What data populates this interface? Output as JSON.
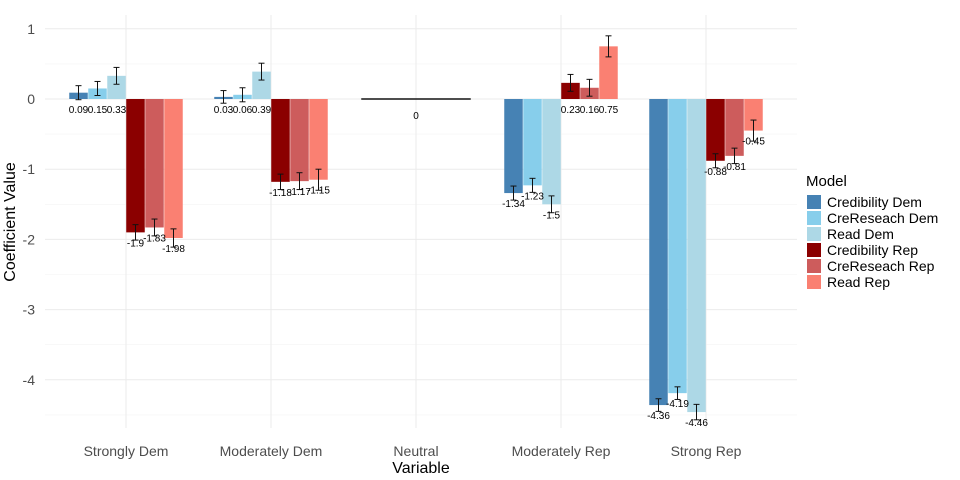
{
  "chart_data": {
    "type": "bar",
    "title": "",
    "xlabel": "Variable",
    "ylabel": "Coefficient Value",
    "categories": [
      "Strongly Dem",
      "Moderately Dem",
      "Neutral",
      "Moderately Rep",
      "Strong Rep"
    ],
    "ylim": [
      -4.7,
      1.05
    ],
    "yticks": [
      1,
      0,
      -1,
      -2,
      -3,
      -4
    ],
    "grid": true,
    "legend": {
      "title": "Model",
      "position": "right"
    },
    "series": [
      {
        "name": "Credibility Dem",
        "color": "#4682b4",
        "values": [
          0.09,
          0.03,
          0,
          -1.34,
          -4.36
        ],
        "labels": [
          "0.09",
          "0.03",
          "0",
          "-1.34",
          "-4.36"
        ],
        "err": [
          0.1,
          0.09,
          0,
          0.1,
          0.09
        ]
      },
      {
        "name": "CreReseach Dem",
        "color": "#87ceeb",
        "values": [
          0.15,
          0.06,
          null,
          -1.23,
          -4.19
        ],
        "labels": [
          "0.15",
          "0.06",
          "",
          "-1.23",
          "-4.19"
        ],
        "err": [
          0.1,
          0.1,
          0,
          0.1,
          0.09
        ]
      },
      {
        "name": "Read Dem",
        "color": "#add8e6",
        "values": [
          0.33,
          0.39,
          null,
          -1.5,
          -4.46
        ],
        "labels": [
          "0.33",
          "0.39",
          "",
          "-1.5",
          "-4.46"
        ],
        "err": [
          0.12,
          0.12,
          0,
          0.12,
          0.11
        ]
      },
      {
        "name": "Credibility Rep",
        "color": "#8b0000",
        "values": [
          -1.9,
          -1.18,
          null,
          0.23,
          -0.88
        ],
        "labels": [
          "-1.9",
          "-1.18",
          "",
          "0.23",
          "-0.88"
        ],
        "err": [
          0.11,
          0.11,
          0,
          0.12,
          0.1
        ]
      },
      {
        "name": "CreReseach Rep",
        "color": "#cd5c5c",
        "values": [
          -1.83,
          -1.17,
          null,
          0.16,
          -0.81
        ],
        "labels": [
          "-1.83",
          "-1.17",
          "",
          "0.16",
          "-0.81"
        ],
        "err": [
          0.12,
          0.12,
          0,
          0.12,
          0.11
        ]
      },
      {
        "name": "Read Rep",
        "color": "#fa8072",
        "values": [
          -1.98,
          -1.15,
          null,
          0.75,
          -0.45
        ],
        "labels": [
          "-1.98",
          "-1.15",
          "",
          "0.75",
          "-0.45"
        ],
        "err": [
          0.13,
          0.15,
          0,
          0.15,
          0.15
        ]
      }
    ]
  }
}
